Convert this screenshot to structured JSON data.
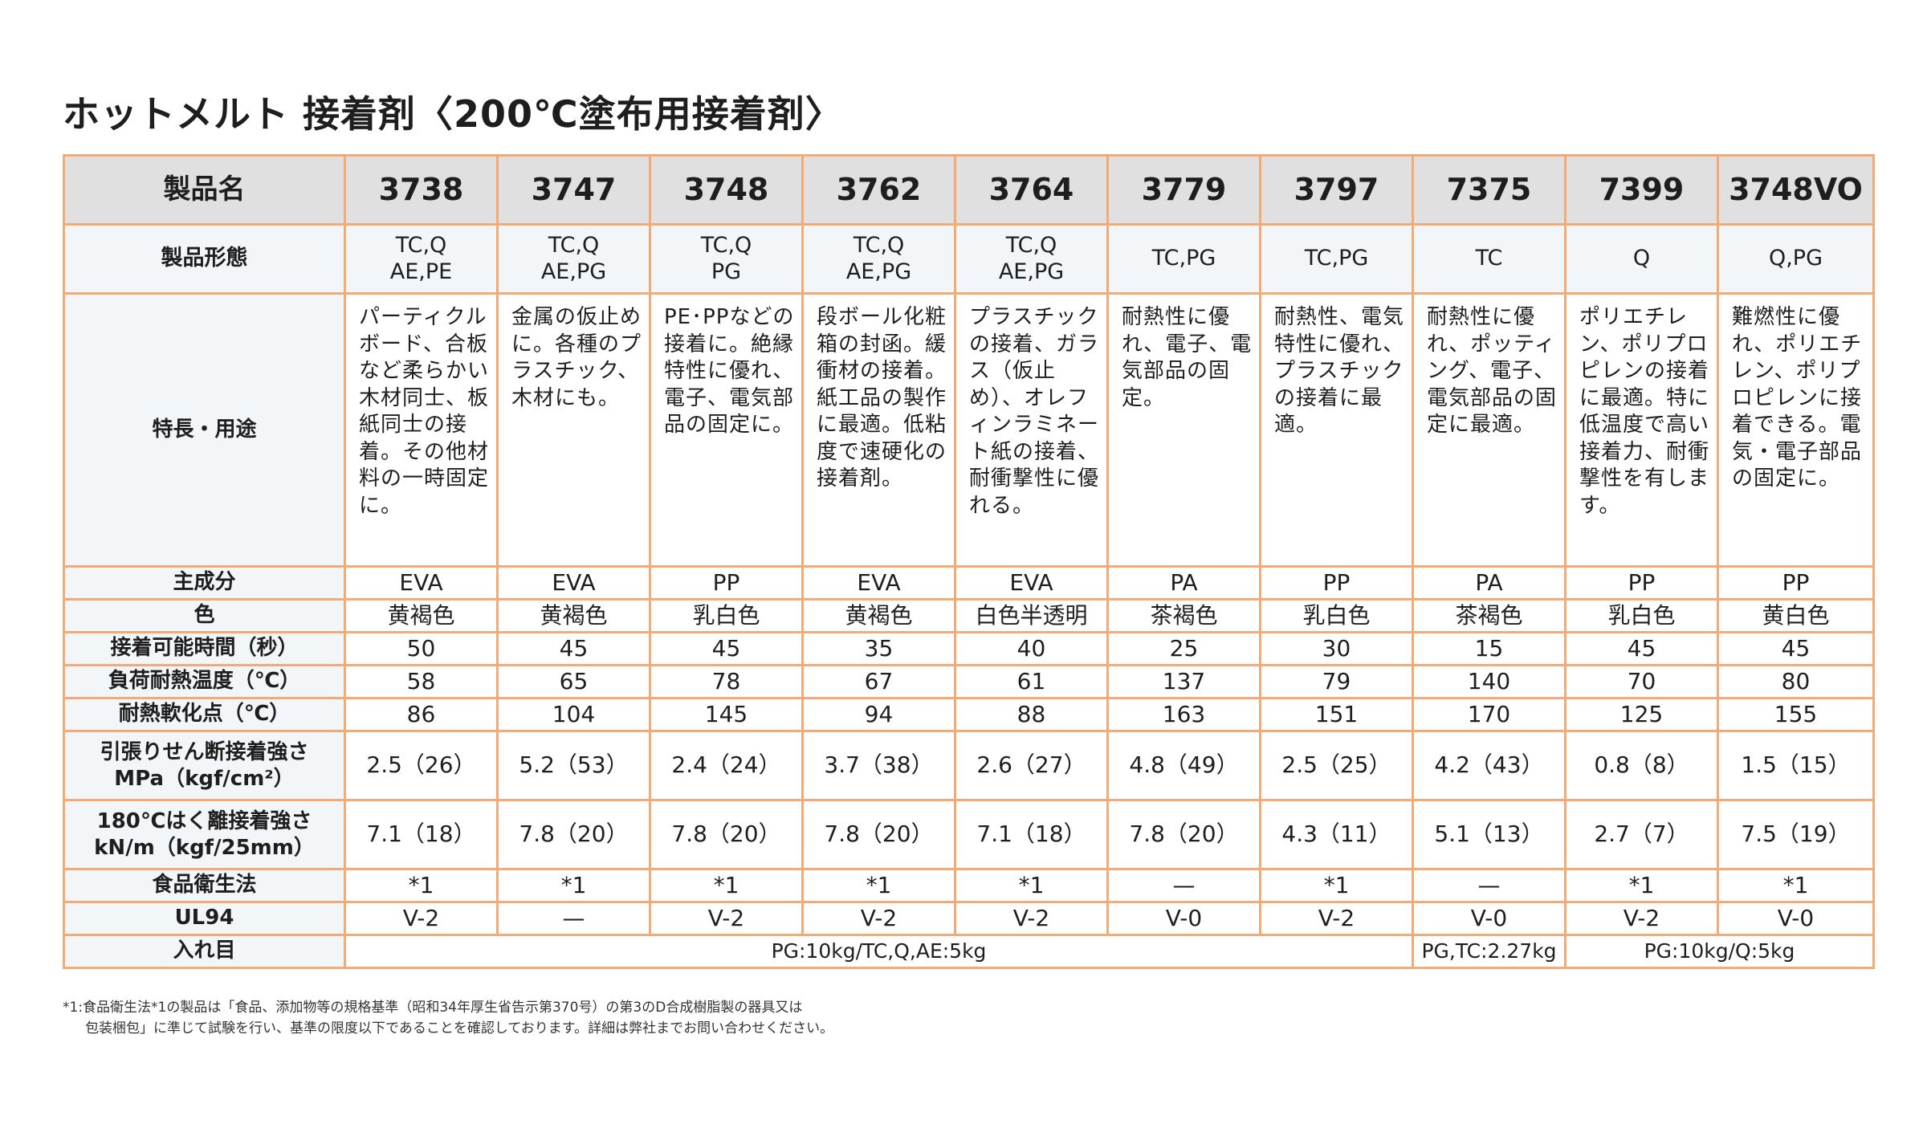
{
  "title": "ホットメルト 接着剤〈200℃塗布用接着剤〉",
  "table": {
    "header_label": "製品名",
    "products": [
      "3738",
      "3747",
      "3748",
      "3762",
      "3764",
      "3779",
      "3797",
      "7375",
      "7399",
      "3748VO"
    ],
    "rows": {
      "form": {
        "label": "製品形態",
        "values": [
          [
            "TC,Q",
            "AE,PE"
          ],
          [
            "TC,Q",
            "AE,PG"
          ],
          [
            "TC,Q",
            "PG"
          ],
          [
            "TC,Q",
            "AE,PG"
          ],
          [
            "TC,Q",
            "AE,PG"
          ],
          [
            "TC,PG"
          ],
          [
            "TC,PG"
          ],
          [
            "TC"
          ],
          [
            "Q"
          ],
          [
            "Q,PG"
          ]
        ]
      },
      "features": {
        "label": "特長・用途",
        "values": [
          "パーティクルボード、合板など柔らかい木材同士、板紙同士の接着。その他材料の一時固定に。",
          "金属の仮止めに。各種のプラスチック、木材にも。",
          "PE･PPなどの接着に。絶縁特性に優れ、電子、電気部品の固定に。",
          "段ボール化粧箱の封函。緩衝材の接着。紙工品の製作に最適。低粘度で速硬化の接着剤。",
          "プラスチックの接着、ガラス（仮止め）、オレフィンラミネート紙の接着、耐衝撃性に優れる。",
          "耐熱性に優れ、電子、電気部品の固定。",
          "耐熱性、電気特性に優れ、プラスチックの接着に最適。",
          "耐熱性に優れ、ポッティング、電子、電気部品の固定に最適。",
          "ポリエチレン、ポリプロピレンの接着に最適。特に低温度で高い接着力、耐衝撃性を有します。",
          "難燃性に優れ、ポリエチレン、ポリプロピレンに接着できる。電気・電子部品の固定に。"
        ]
      },
      "main_component": {
        "label": "主成分",
        "values": [
          "EVA",
          "EVA",
          "PP",
          "EVA",
          "EVA",
          "PA",
          "PP",
          "PA",
          "PP",
          "PP"
        ]
      },
      "color": {
        "label": "色",
        "values": [
          "黄褐色",
          "黄褐色",
          "乳白色",
          "黄褐色",
          "白色半透明",
          "茶褐色",
          "乳白色",
          "茶褐色",
          "乳白色",
          "黄白色"
        ]
      },
      "open_time": {
        "label": "接着可能時間（秒）",
        "values": [
          "50",
          "45",
          "45",
          "35",
          "40",
          "25",
          "30",
          "15",
          "45",
          "45"
        ]
      },
      "heat_load_temp": {
        "label": "負荷耐熱温度（℃）",
        "values": [
          "58",
          "65",
          "78",
          "67",
          "61",
          "137",
          "79",
          "140",
          "70",
          "80"
        ]
      },
      "softening_point": {
        "label": "耐熱軟化点（℃）",
        "values": [
          "86",
          "104",
          "145",
          "94",
          "88",
          "163",
          "151",
          "170",
          "125",
          "155"
        ]
      },
      "tensile_shear": {
        "label_line1": "引張りせん断接着強さ",
        "label_line2": "MPa（kgf/cm²）",
        "values": [
          "2.5（26）",
          "5.2（53）",
          "2.4（24）",
          "3.7（38）",
          "2.6（27）",
          "4.8（49）",
          "2.5（25）",
          "4.2（43）",
          "0.8（8）",
          "1.5（15）"
        ]
      },
      "peel_strength": {
        "label_line1": "180℃はく離接着強さ",
        "label_line2": "kN/m（kgf/25mm）",
        "values": [
          "7.1（18）",
          "7.8（20）",
          "7.8（20）",
          "7.8（20）",
          "7.1（18）",
          "7.8（20）",
          "4.3（11）",
          "5.1（13）",
          "2.7（7）",
          "7.5（19）"
        ]
      },
      "food_sanitation": {
        "label": "食品衛生法",
        "values": [
          "*1",
          "*1",
          "*1",
          "*1",
          "*1",
          "—",
          "*1",
          "—",
          "*1",
          "*1"
        ]
      },
      "ul94": {
        "label": "UL94",
        "values": [
          "V-2",
          "—",
          "V-2",
          "V-2",
          "V-2",
          "V-0",
          "V-2",
          "V-0",
          "V-2",
          "V-0"
        ]
      },
      "packaging": {
        "label": "入れ目",
        "group1": "PG:10kg/TC,Q,AE:5kg",
        "group2": "PG,TC:2.27kg",
        "group3": "PG:10kg/Q:5kg"
      }
    }
  },
  "footnote": {
    "line1": "*1:食品衛生法*1の製品は「食品、添加物等の規格基準（昭和34年厚生省告示第370号）の第3のD合成樹脂製の器具又は",
    "line2": "包装梱包」に準じて試験を行い、基準の限度以下であることを確認しております。詳細は弊社までお問い合わせください。"
  }
}
